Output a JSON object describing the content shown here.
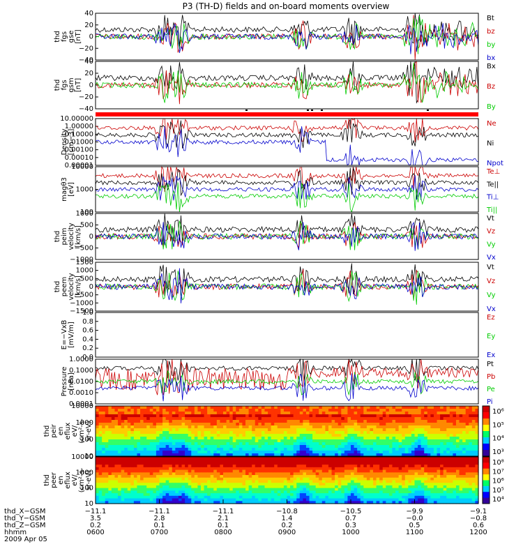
{
  "chart_data": {
    "type": "line",
    "title": "P3 (TH-D) fields and on-board moments overview",
    "date": "2009 Apr 05",
    "panels": [
      {
        "id": "fgs_gse",
        "ylabel": [
          "thd",
          "fgs",
          "gse",
          "[nT]"
        ],
        "ylim": [
          -40,
          40
        ],
        "scale": "linear",
        "ticks": [
          "40",
          "20",
          "0",
          "−20",
          "−40"
        ],
        "series": [
          {
            "name": "Bt",
            "color": "#000000"
          },
          {
            "name": "bz",
            "color": "#cc0000"
          },
          {
            "name": "by",
            "color": "#00cc00"
          },
          {
            "name": "bx",
            "color": "#0000cc"
          }
        ]
      },
      {
        "id": "fgs_gsm",
        "ylabel": [
          "thd",
          "fgs",
          "gsm",
          "[nT]"
        ],
        "ylim": [
          -40,
          40
        ],
        "scale": "linear",
        "ticks": [
          "40",
          "20",
          "0",
          "−20",
          "−40"
        ],
        "series": [
          {
            "name": "Bx",
            "color": "#000000"
          },
          {
            "name": "Bz",
            "color": "#cc0000"
          },
          {
            "name": "By",
            "color": "#00cc00"
          }
        ]
      },
      {
        "id": "density",
        "ylabel": [
          "Density",
          "[cm−3]"
        ],
        "ylim": [
          0.0001,
          10
        ],
        "scale": "log",
        "ticks": [
          "10.00000",
          "1.00000",
          "0.10000",
          "0.01000",
          "0.00100",
          "0.00010",
          "0.00001"
        ],
        "series": [
          {
            "name": "Ne",
            "color": "#cc0000"
          },
          {
            "name": "Ni",
            "color": "#000000"
          },
          {
            "name": "Npot",
            "color": "#0000cc"
          }
        ]
      },
      {
        "id": "temp",
        "ylabel": [
          "magθ3",
          "[eV]"
        ],
        "ylim": [
          100,
          10000
        ],
        "scale": "log",
        "ticks": [
          "10000",
          "1000",
          "100"
        ],
        "series": [
          {
            "name": "Te⊥",
            "color": "#cc0000"
          },
          {
            "name": "Te||",
            "color": "#000000"
          },
          {
            "name": "Ti⊥",
            "color": "#0000cc"
          },
          {
            "name": "Ti||",
            "color": "#00cc00"
          }
        ]
      },
      {
        "id": "peim",
        "ylabel": [
          "thd",
          "peim",
          "velocity",
          "[km/s]"
        ],
        "ylim": [
          -1000,
          1000
        ],
        "scale": "linear",
        "ticks": [
          "1000",
          "500",
          "0",
          "−500",
          "−1000"
        ],
        "series": [
          {
            "name": "Vt",
            "color": "#000000"
          },
          {
            "name": "Vz",
            "color": "#cc0000"
          },
          {
            "name": "Vy",
            "color": "#00cc00"
          },
          {
            "name": "Vx",
            "color": "#0000cc"
          }
        ]
      },
      {
        "id": "peem",
        "ylabel": [
          "thd",
          "peem",
          "velocity",
          "[km/s]"
        ],
        "ylim": [
          -1500,
          1500
        ],
        "scale": "linear",
        "ticks": [
          "1500",
          "1000",
          "500",
          "0",
          "−500",
          "−1000",
          "−1500"
        ],
        "series": [
          {
            "name": "Vt",
            "color": "#000000"
          },
          {
            "name": "Vz",
            "color": "#cc0000"
          },
          {
            "name": "Vy",
            "color": "#00cc00"
          },
          {
            "name": "Vx",
            "color": "#0000cc"
          }
        ]
      },
      {
        "id": "efield",
        "ylabel": [
          "E=−VxB",
          "[mV/m]"
        ],
        "ylim": [
          0,
          1
        ],
        "scale": "linear",
        "ticks": [
          "1.0",
          "0.8",
          "0.6",
          "0.4",
          "0.2",
          "0.0"
        ],
        "series": [
          {
            "name": "Ez",
            "color": "#cc0000"
          },
          {
            "name": "Ey",
            "color": "#00cc00"
          },
          {
            "name": "Ex",
            "color": "#0000cc"
          }
        ]
      },
      {
        "id": "pressure",
        "ylabel": [
          "Pressure",
          "[nPa]"
        ],
        "ylim": [
          0.0001,
          1
        ],
        "scale": "log",
        "ticks": [
          "1.0000",
          "0.1000",
          "0.0100",
          "0.0010",
          "0.0001"
        ],
        "series": [
          {
            "name": "Pt",
            "color": "#000000"
          },
          {
            "name": "Pb",
            "color": "#cc0000"
          },
          {
            "name": "Pe",
            "color": "#00cc00"
          },
          {
            "name": "Pi",
            "color": "#0000cc"
          }
        ]
      },
      {
        "id": "peir",
        "ylabel": [
          "thd",
          "peir",
          "en",
          "eflux",
          "eV/",
          "(cm²-s-",
          "sr-eV)"
        ],
        "type": "heatmap",
        "ticks": [
          "10000",
          "1000",
          "100",
          "10"
        ],
        "colorbar": [
          "10⁶",
          "10⁵",
          "10⁴",
          "10³"
        ]
      },
      {
        "id": "peer",
        "ylabel": [
          "thd",
          "peer",
          "en",
          "eflux",
          "eV/",
          "(cm²-s-",
          "sr-eV)"
        ],
        "type": "heatmap",
        "ticks": [
          "10000",
          "1000",
          "100",
          "10"
        ],
        "colorbar": [
          "10⁸",
          "10⁷",
          "10⁶",
          "10⁵",
          "10⁴"
        ]
      }
    ],
    "x_axis": {
      "row_labels": [
        "thd_X−GSM",
        "thd_Y−GSM",
        "thd_Z−GSM",
        "hhmm"
      ],
      "columns": [
        [
          "−11.1",
          "3.5",
          "0.2",
          "0600"
        ],
        [
          "−11.1",
          "2.8",
          "0.1",
          "0700"
        ],
        [
          "−11.1",
          "2.1",
          "0.1",
          "0800"
        ],
        [
          "−10.8",
          "1.4",
          "0.2",
          "0900"
        ],
        [
          "−10.5",
          "0.7",
          "0.3",
          "1000"
        ],
        [
          "−9.9",
          "−0.0",
          "0.5",
          "1100"
        ],
        [
          "−9.1",
          "−0.8",
          "0.6",
          "1200"
        ]
      ]
    }
  }
}
